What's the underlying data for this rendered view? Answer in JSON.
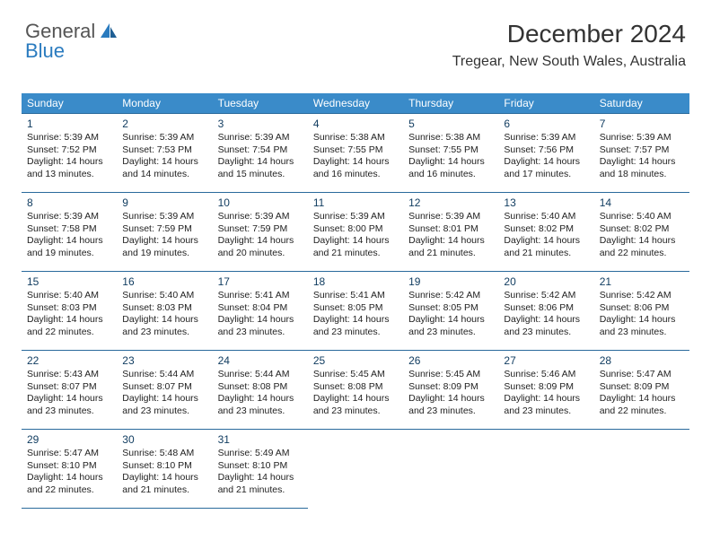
{
  "logo": {
    "part1": "General",
    "part2": "Blue"
  },
  "title": "December 2024",
  "subtitle": "Tregear, New South Wales, Australia",
  "colors": {
    "header_bg": "#3a8bc9",
    "header_text": "#ffffff",
    "border": "#2a6a9c",
    "logo_blue": "#2a7bbf",
    "text": "#222222"
  },
  "dayNames": [
    "Sunday",
    "Monday",
    "Tuesday",
    "Wednesday",
    "Thursday",
    "Friday",
    "Saturday"
  ],
  "weeks": [
    [
      {
        "n": "1",
        "sr": "Sunrise: 5:39 AM",
        "ss": "Sunset: 7:52 PM",
        "d1": "Daylight: 14 hours",
        "d2": "and 13 minutes."
      },
      {
        "n": "2",
        "sr": "Sunrise: 5:39 AM",
        "ss": "Sunset: 7:53 PM",
        "d1": "Daylight: 14 hours",
        "d2": "and 14 minutes."
      },
      {
        "n": "3",
        "sr": "Sunrise: 5:39 AM",
        "ss": "Sunset: 7:54 PM",
        "d1": "Daylight: 14 hours",
        "d2": "and 15 minutes."
      },
      {
        "n": "4",
        "sr": "Sunrise: 5:38 AM",
        "ss": "Sunset: 7:55 PM",
        "d1": "Daylight: 14 hours",
        "d2": "and 16 minutes."
      },
      {
        "n": "5",
        "sr": "Sunrise: 5:38 AM",
        "ss": "Sunset: 7:55 PM",
        "d1": "Daylight: 14 hours",
        "d2": "and 16 minutes."
      },
      {
        "n": "6",
        "sr": "Sunrise: 5:39 AM",
        "ss": "Sunset: 7:56 PM",
        "d1": "Daylight: 14 hours",
        "d2": "and 17 minutes."
      },
      {
        "n": "7",
        "sr": "Sunrise: 5:39 AM",
        "ss": "Sunset: 7:57 PM",
        "d1": "Daylight: 14 hours",
        "d2": "and 18 minutes."
      }
    ],
    [
      {
        "n": "8",
        "sr": "Sunrise: 5:39 AM",
        "ss": "Sunset: 7:58 PM",
        "d1": "Daylight: 14 hours",
        "d2": "and 19 minutes."
      },
      {
        "n": "9",
        "sr": "Sunrise: 5:39 AM",
        "ss": "Sunset: 7:59 PM",
        "d1": "Daylight: 14 hours",
        "d2": "and 19 minutes."
      },
      {
        "n": "10",
        "sr": "Sunrise: 5:39 AM",
        "ss": "Sunset: 7:59 PM",
        "d1": "Daylight: 14 hours",
        "d2": "and 20 minutes."
      },
      {
        "n": "11",
        "sr": "Sunrise: 5:39 AM",
        "ss": "Sunset: 8:00 PM",
        "d1": "Daylight: 14 hours",
        "d2": "and 21 minutes."
      },
      {
        "n": "12",
        "sr": "Sunrise: 5:39 AM",
        "ss": "Sunset: 8:01 PM",
        "d1": "Daylight: 14 hours",
        "d2": "and 21 minutes."
      },
      {
        "n": "13",
        "sr": "Sunrise: 5:40 AM",
        "ss": "Sunset: 8:02 PM",
        "d1": "Daylight: 14 hours",
        "d2": "and 21 minutes."
      },
      {
        "n": "14",
        "sr": "Sunrise: 5:40 AM",
        "ss": "Sunset: 8:02 PM",
        "d1": "Daylight: 14 hours",
        "d2": "and 22 minutes."
      }
    ],
    [
      {
        "n": "15",
        "sr": "Sunrise: 5:40 AM",
        "ss": "Sunset: 8:03 PM",
        "d1": "Daylight: 14 hours",
        "d2": "and 22 minutes."
      },
      {
        "n": "16",
        "sr": "Sunrise: 5:40 AM",
        "ss": "Sunset: 8:03 PM",
        "d1": "Daylight: 14 hours",
        "d2": "and 23 minutes."
      },
      {
        "n": "17",
        "sr": "Sunrise: 5:41 AM",
        "ss": "Sunset: 8:04 PM",
        "d1": "Daylight: 14 hours",
        "d2": "and 23 minutes."
      },
      {
        "n": "18",
        "sr": "Sunrise: 5:41 AM",
        "ss": "Sunset: 8:05 PM",
        "d1": "Daylight: 14 hours",
        "d2": "and 23 minutes."
      },
      {
        "n": "19",
        "sr": "Sunrise: 5:42 AM",
        "ss": "Sunset: 8:05 PM",
        "d1": "Daylight: 14 hours",
        "d2": "and 23 minutes."
      },
      {
        "n": "20",
        "sr": "Sunrise: 5:42 AM",
        "ss": "Sunset: 8:06 PM",
        "d1": "Daylight: 14 hours",
        "d2": "and 23 minutes."
      },
      {
        "n": "21",
        "sr": "Sunrise: 5:42 AM",
        "ss": "Sunset: 8:06 PM",
        "d1": "Daylight: 14 hours",
        "d2": "and 23 minutes."
      }
    ],
    [
      {
        "n": "22",
        "sr": "Sunrise: 5:43 AM",
        "ss": "Sunset: 8:07 PM",
        "d1": "Daylight: 14 hours",
        "d2": "and 23 minutes."
      },
      {
        "n": "23",
        "sr": "Sunrise: 5:44 AM",
        "ss": "Sunset: 8:07 PM",
        "d1": "Daylight: 14 hours",
        "d2": "and 23 minutes."
      },
      {
        "n": "24",
        "sr": "Sunrise: 5:44 AM",
        "ss": "Sunset: 8:08 PM",
        "d1": "Daylight: 14 hours",
        "d2": "and 23 minutes."
      },
      {
        "n": "25",
        "sr": "Sunrise: 5:45 AM",
        "ss": "Sunset: 8:08 PM",
        "d1": "Daylight: 14 hours",
        "d2": "and 23 minutes."
      },
      {
        "n": "26",
        "sr": "Sunrise: 5:45 AM",
        "ss": "Sunset: 8:09 PM",
        "d1": "Daylight: 14 hours",
        "d2": "and 23 minutes."
      },
      {
        "n": "27",
        "sr": "Sunrise: 5:46 AM",
        "ss": "Sunset: 8:09 PM",
        "d1": "Daylight: 14 hours",
        "d2": "and 23 minutes."
      },
      {
        "n": "28",
        "sr": "Sunrise: 5:47 AM",
        "ss": "Sunset: 8:09 PM",
        "d1": "Daylight: 14 hours",
        "d2": "and 22 minutes."
      }
    ],
    [
      {
        "n": "29",
        "sr": "Sunrise: 5:47 AM",
        "ss": "Sunset: 8:10 PM",
        "d1": "Daylight: 14 hours",
        "d2": "and 22 minutes."
      },
      {
        "n": "30",
        "sr": "Sunrise: 5:48 AM",
        "ss": "Sunset: 8:10 PM",
        "d1": "Daylight: 14 hours",
        "d2": "and 21 minutes."
      },
      {
        "n": "31",
        "sr": "Sunrise: 5:49 AM",
        "ss": "Sunset: 8:10 PM",
        "d1": "Daylight: 14 hours",
        "d2": "and 21 minutes."
      },
      null,
      null,
      null,
      null
    ]
  ]
}
